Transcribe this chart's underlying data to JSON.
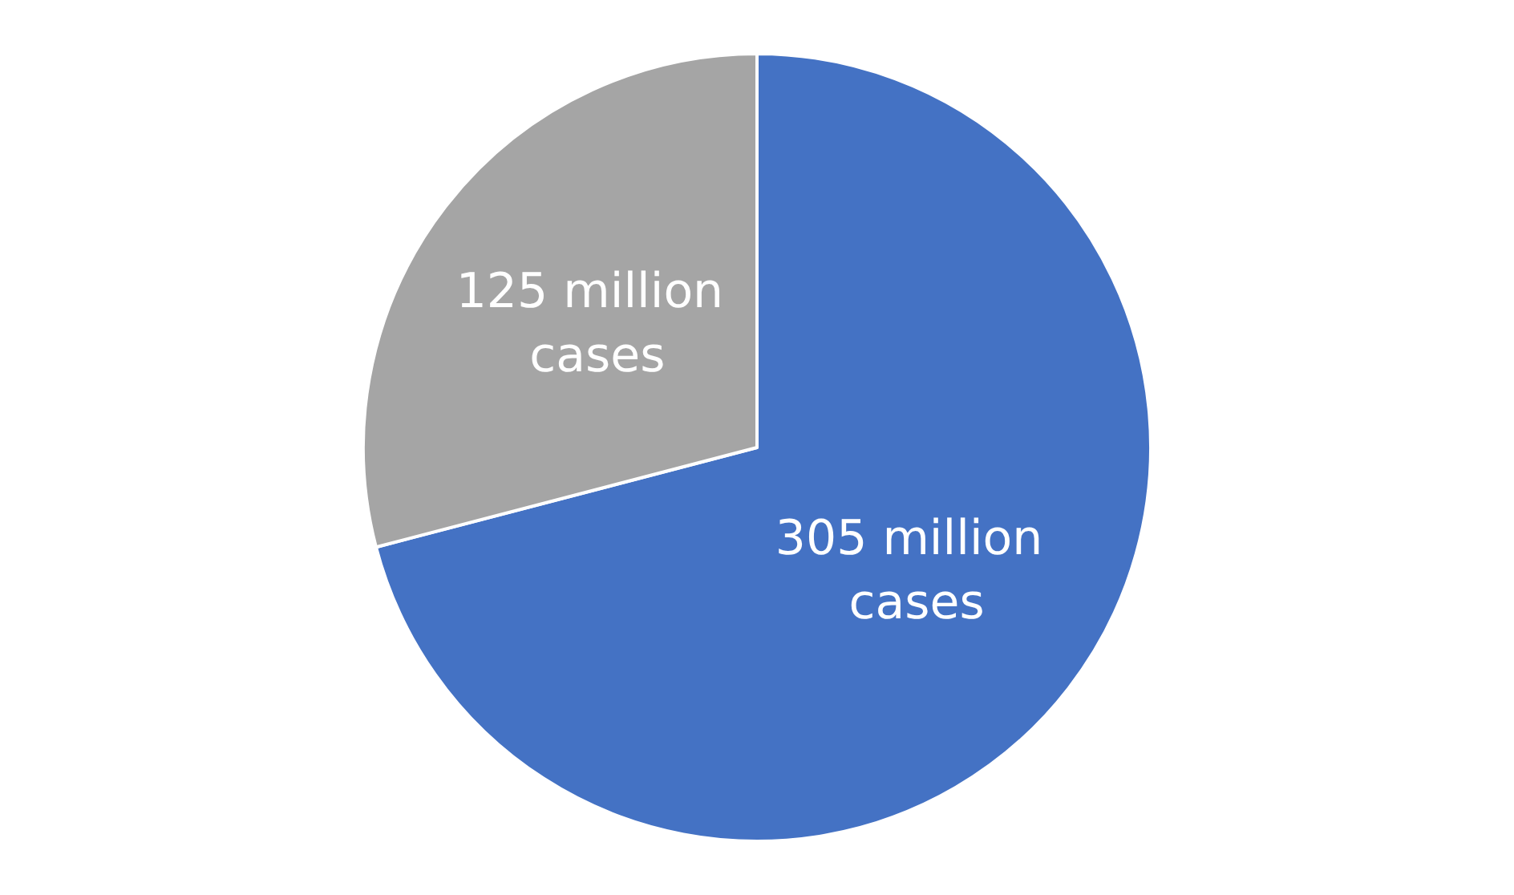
{
  "chart_data": {
    "type": "pie",
    "categories": [
      null,
      null
    ],
    "values": [
      305,
      125
    ],
    "colors": [
      "#4472c4",
      "#a5a5a5"
    ],
    "value_labels": [
      "305 million cases",
      "125 million cases"
    ]
  }
}
